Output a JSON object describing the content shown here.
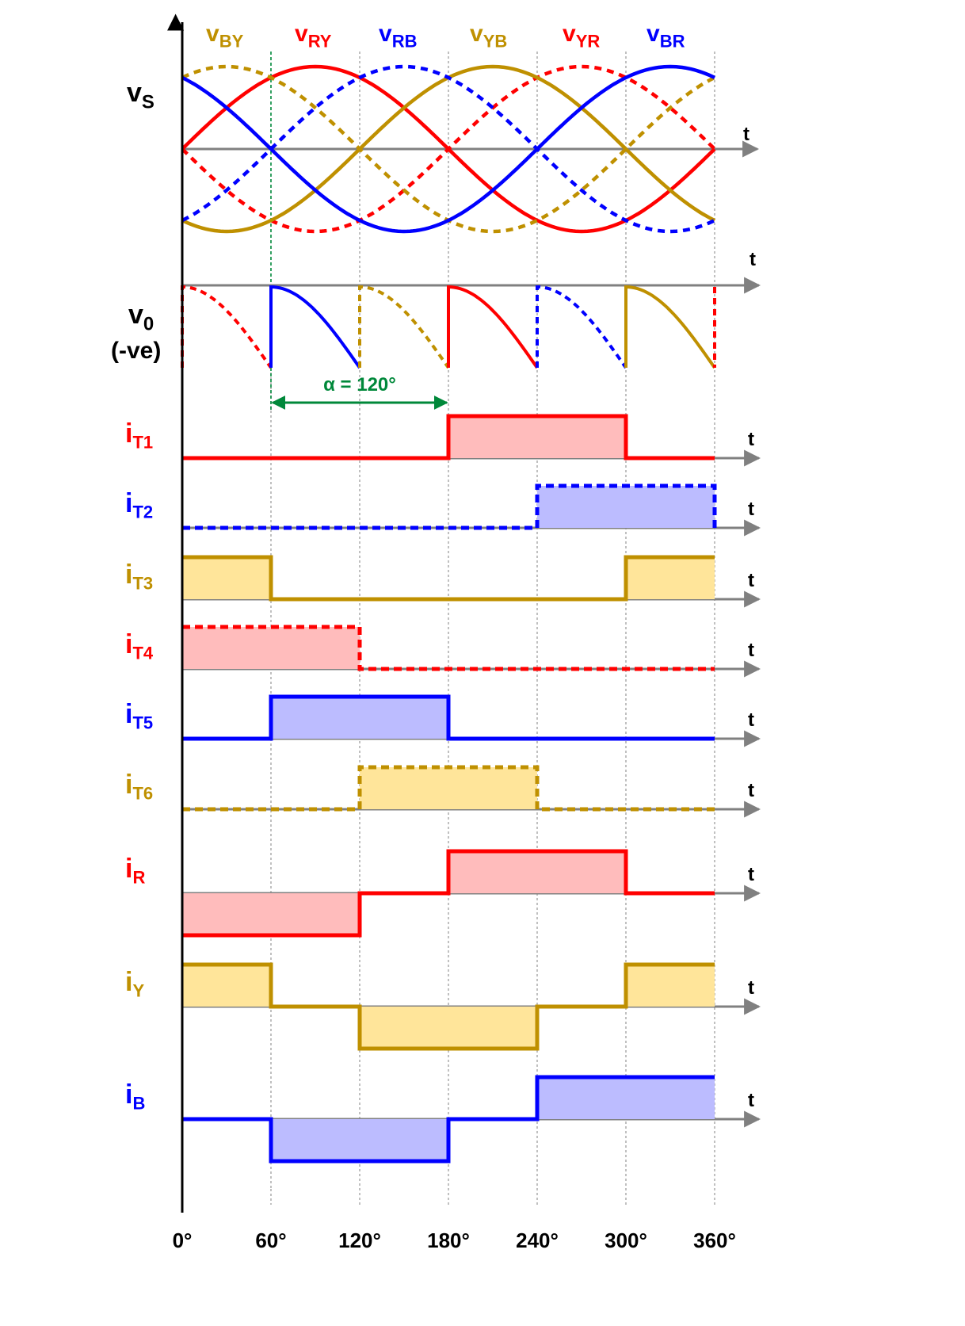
{
  "colors": {
    "red": "#ff0000",
    "blue": "#0000ff",
    "gold": "#bf9000",
    "red_fill": "#ffbcbc",
    "blue_fill": "#bcbcff",
    "gold_fill": "#ffe59a",
    "axis": "#808080",
    "grid": "#a6a6a6",
    "alpha_marker": "#00883a"
  },
  "x_axis_ticks": [
    "0°",
    "60°",
    "120°",
    "180°",
    "240°",
    "300°",
    "360°"
  ],
  "axis_arrow_label": "t",
  "vs_panel": {
    "label_main": "v",
    "label_sub": "S",
    "phase_labels": [
      {
        "main": "v",
        "sub": "BY",
        "color": "gold"
      },
      {
        "main": "v",
        "sub": "RY",
        "color": "red"
      },
      {
        "main": "v",
        "sub": "RB",
        "color": "blue"
      },
      {
        "main": "v",
        "sub": "YB",
        "color": "gold"
      },
      {
        "main": "v",
        "sub": "YR",
        "color": "red"
      },
      {
        "main": "v",
        "sub": "BR",
        "color": "blue"
      }
    ],
    "curves": [
      {
        "name": "RY",
        "phase_deg": 0,
        "color": "red",
        "dashed": false
      },
      {
        "name": "YR",
        "phase_deg": 180,
        "color": "red",
        "dashed": true
      },
      {
        "name": "YB",
        "phase_deg": 120,
        "color": "gold",
        "dashed": false
      },
      {
        "name": "BY",
        "phase_deg": 300,
        "color": "gold",
        "dashed": true
      },
      {
        "name": "BR",
        "phase_deg": 240,
        "color": "blue",
        "dashed": false
      },
      {
        "name": "RB",
        "phase_deg": 60,
        "color": "blue",
        "dashed": true
      }
    ]
  },
  "vo_panel": {
    "label_main": "v",
    "label_sub": "0",
    "label_note": "(-ve)",
    "segments": [
      {
        "from_deg": 0,
        "to_deg": 60,
        "color": "red",
        "dashed": true
      },
      {
        "from_deg": 60,
        "to_deg": 120,
        "color": "blue",
        "dashed": false
      },
      {
        "from_deg": 120,
        "to_deg": 180,
        "color": "gold",
        "dashed": true
      },
      {
        "from_deg": 180,
        "to_deg": 240,
        "color": "red",
        "dashed": false
      },
      {
        "from_deg": 240,
        "to_deg": 300,
        "color": "blue",
        "dashed": true
      },
      {
        "from_deg": 300,
        "to_deg": 360,
        "color": "gold",
        "dashed": false
      }
    ],
    "firing_angle_label": "α = 120°",
    "firing_angle_from_deg": 60,
    "firing_angle_to_deg": 180
  },
  "current_panels": [
    {
      "main": "i",
      "sub": "T1",
      "color": "red",
      "dashed": false,
      "intervals": [
        [
          180,
          300,
          1
        ]
      ]
    },
    {
      "main": "i",
      "sub": "T2",
      "color": "blue",
      "dashed": true,
      "intervals": [
        [
          240,
          360,
          1
        ]
      ]
    },
    {
      "main": "i",
      "sub": "T3",
      "color": "gold",
      "dashed": false,
      "intervals": [
        [
          0,
          60,
          1
        ],
        [
          300,
          360,
          1
        ]
      ]
    },
    {
      "main": "i",
      "sub": "T4",
      "color": "red",
      "dashed": true,
      "intervals": [
        [
          0,
          120,
          1
        ]
      ]
    },
    {
      "main": "i",
      "sub": "T5",
      "color": "blue",
      "dashed": false,
      "intervals": [
        [
          60,
          180,
          1
        ]
      ]
    },
    {
      "main": "i",
      "sub": "T6",
      "color": "gold",
      "dashed": true,
      "intervals": [
        [
          120,
          240,
          1
        ]
      ]
    },
    {
      "main": "i",
      "sub": "R",
      "color": "red",
      "dashed": false,
      "intervals": [
        [
          0,
          120,
          -1
        ],
        [
          180,
          300,
          1
        ]
      ]
    },
    {
      "main": "i",
      "sub": "Y",
      "color": "gold",
      "dashed": false,
      "intervals": [
        [
          0,
          60,
          1
        ],
        [
          120,
          240,
          -1
        ],
        [
          300,
          360,
          1
        ]
      ]
    },
    {
      "main": "i",
      "sub": "B",
      "color": "blue",
      "dashed": false,
      "intervals": [
        [
          60,
          180,
          -1
        ],
        [
          240,
          360,
          1
        ]
      ]
    }
  ]
}
